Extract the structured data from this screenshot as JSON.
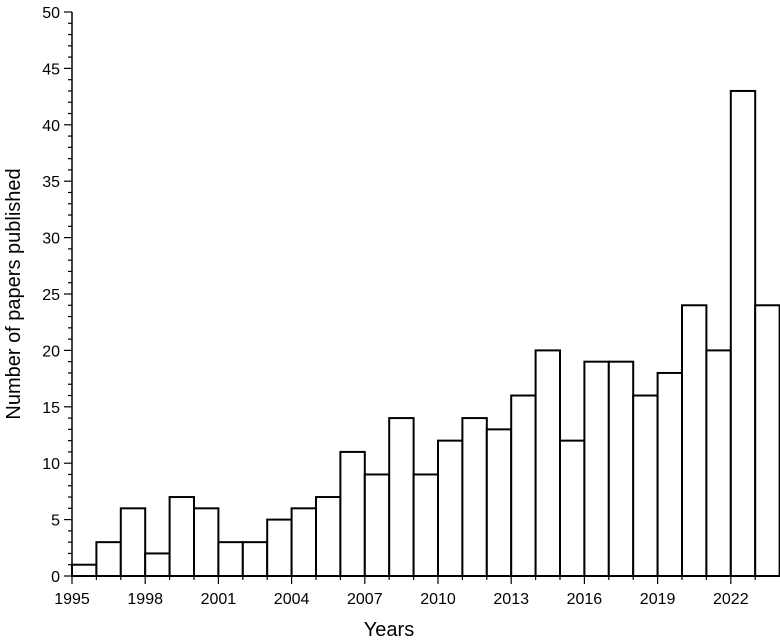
{
  "chart_data": {
    "type": "bar",
    "title": "",
    "xlabel": "Years",
    "ylabel": "Number of papers published",
    "categories": [
      1995,
      1996,
      1997,
      1998,
      1999,
      2000,
      2001,
      2002,
      2003,
      2004,
      2005,
      2006,
      2007,
      2008,
      2009,
      2010,
      2011,
      2012,
      2013,
      2014,
      2015,
      2016,
      2017,
      2018,
      2019,
      2020,
      2021,
      2022,
      2023
    ],
    "values": [
      1,
      3,
      6,
      2,
      7,
      6,
      3,
      3,
      5,
      6,
      7,
      11,
      9,
      14,
      9,
      12,
      14,
      13,
      16,
      20,
      12,
      19,
      19,
      16,
      18,
      24,
      20,
      43,
      24
    ],
    "x_tick_labels": [
      "1995",
      "1998",
      "2001",
      "2004",
      "2007",
      "2010",
      "2013",
      "2016",
      "2019",
      "2022"
    ],
    "y_tick_labels": [
      "0",
      "5",
      "10",
      "15",
      "20",
      "25",
      "30",
      "35",
      "40",
      "45",
      "50"
    ],
    "ylim": [
      0,
      50
    ],
    "grid": false,
    "bar_fill": "#ffffff",
    "bar_stroke": "#000000"
  }
}
